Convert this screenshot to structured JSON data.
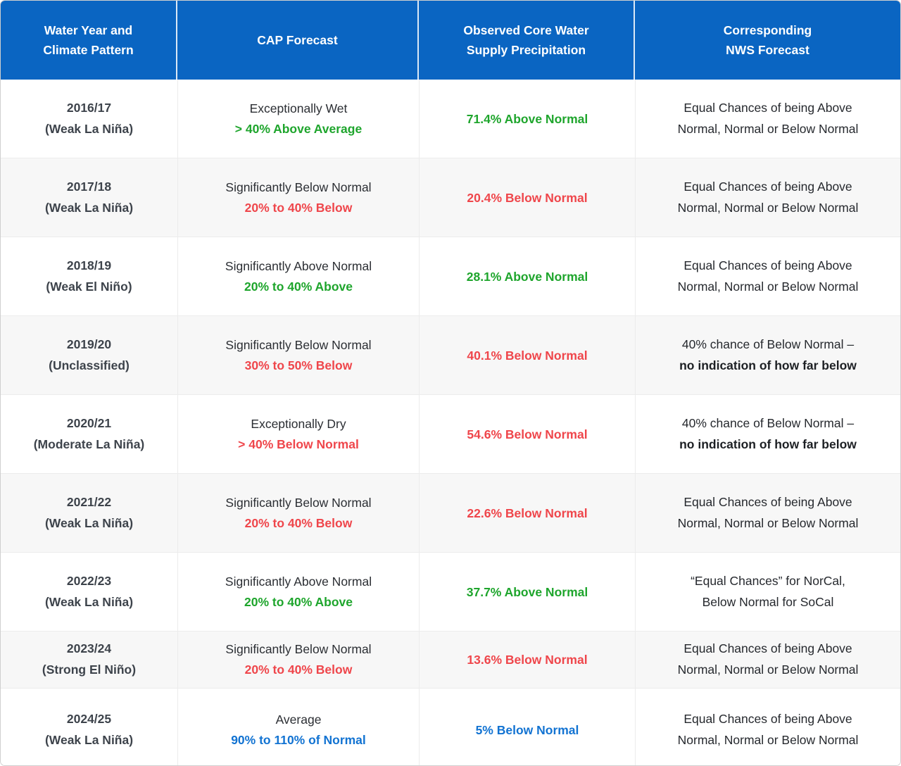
{
  "theme": {
    "header_bg": "#0a65c2",
    "green": "#1ea52c",
    "red": "#ef464b",
    "blue": "#1273d2",
    "stripe": "#f7f7f7",
    "grid_line": "#ececec"
  },
  "chart_data": {
    "type": "table",
    "columns": [
      "Water Year and\nClimate Pattern",
      "CAP Forecast",
      "Observed Core Water\nSupply Precipitation",
      "Corresponding\nNWS Forecast"
    ],
    "rows": [
      {
        "year": "2016/17",
        "pattern": "(Weak La Niña)",
        "cap_line1": "Exceptionally Wet",
        "cap_line2": "> 40% Above Average",
        "cap_tone": "tone-green",
        "observed": "71.4% Above Normal",
        "observed_tone": "tone-green",
        "nws": "Equal Chances of being Above\nNormal, Normal or Below Normal"
      },
      {
        "year": "2017/18",
        "pattern": "(Weak La Niña)",
        "cap_line1": "Significantly Below Normal",
        "cap_line2": "20% to 40% Below",
        "cap_tone": "tone-red",
        "observed": "20.4% Below Normal",
        "observed_tone": "tone-red",
        "nws": "Equal Chances of being Above\nNormal, Normal or Below Normal"
      },
      {
        "year": "2018/19",
        "pattern": "(Weak El Niño)",
        "cap_line1": "Significantly Above Normal",
        "cap_line2": "20% to 40% Above",
        "cap_tone": "tone-green",
        "observed": "28.1% Above Normal",
        "observed_tone": "tone-green",
        "nws": "Equal Chances of being Above\nNormal, Normal or Below Normal"
      },
      {
        "year": "2019/20",
        "pattern": "(Unclassified)",
        "cap_line1": "Significantly Below Normal",
        "cap_line2": "30% to 50% Below",
        "cap_tone": "tone-red",
        "observed": "40.1% Below Normal",
        "observed_tone": "tone-red",
        "nws": "40% chance of Below Normal –",
        "nws_bold": "no indication of how far below"
      },
      {
        "year": "2020/21",
        "pattern": "(Moderate La Niña)",
        "cap_line1": "Exceptionally Dry",
        "cap_line2": "> 40% Below Normal",
        "cap_tone": "tone-red",
        "observed": "54.6% Below Normal",
        "observed_tone": "tone-red",
        "nws": "40% chance of Below Normal –",
        "nws_bold": "no indication of how far below"
      },
      {
        "year": "2021/22",
        "pattern": "(Weak La Niña)",
        "cap_line1": "Significantly Below Normal",
        "cap_line2": "20% to 40% Below",
        "cap_tone": "tone-red",
        "observed": "22.6% Below Normal",
        "observed_tone": "tone-red",
        "nws": "Equal Chances of being Above\nNormal, Normal or Below Normal"
      },
      {
        "year": "2022/23",
        "pattern": "(Weak La Niña)",
        "cap_line1": "Significantly Above Normal",
        "cap_line2": "20% to 40% Above",
        "cap_tone": "tone-green",
        "observed": "37.7% Above Normal",
        "observed_tone": "tone-green",
        "nws": "“Equal Chances” for NorCal,\nBelow Normal for SoCal"
      },
      {
        "year": "2023/24",
        "pattern": "(Strong El Niño)",
        "cap_line1": "Significantly Below Normal",
        "cap_line2": "20% to 40% Below",
        "cap_tone": "tone-red",
        "observed": "13.6% Below Normal",
        "observed_tone": "tone-red",
        "nws": "Equal Chances of being Above\nNormal, Normal or Below Normal"
      },
      {
        "year": "2024/25",
        "pattern": "(Weak La Niña)",
        "cap_line1": "Average",
        "cap_line2": "90% to 110% of Normal",
        "cap_tone": "tone-blue",
        "observed": "5% Below Normal",
        "observed_tone": "tone-blue",
        "nws": "Equal Chances of being Above\nNormal, Normal or Below Normal"
      }
    ]
  }
}
